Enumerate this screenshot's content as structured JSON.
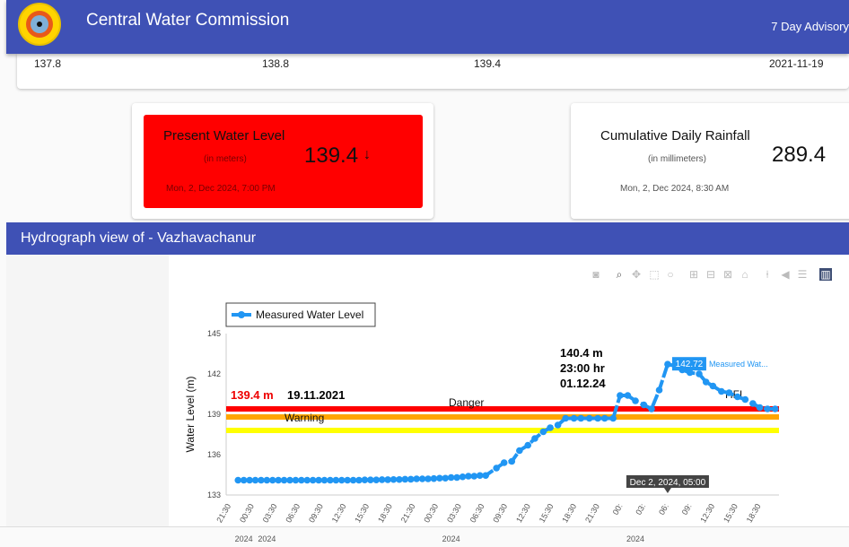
{
  "header": {
    "title": "Central Water Commission",
    "advisory_link": "7 Day Advisory"
  },
  "levels_strip": {
    "values": [
      "137.8",
      "138.8",
      "139.4",
      "2021-11-19"
    ]
  },
  "present_level": {
    "label": "Present Water Level",
    "unit": "(in meters)",
    "value": "139.4",
    "trend": "↓",
    "timestamp": "Mon, 2, Dec 2024, 7:00 PM"
  },
  "rainfall": {
    "label": "Cumulative Daily Rainfall",
    "unit": "(in millimeters)",
    "value": "289.4",
    "timestamp": "Mon, 2, Dec 2024, 8:30 AM"
  },
  "section": {
    "title": "Hydrograph view of - Vazhavachanur"
  },
  "modebar": [
    "camera-icon",
    "zoom-icon",
    "pan-icon",
    "box-select-icon",
    "lasso-icon",
    "zoom-in-icon",
    "zoom-out-icon",
    "autoscale-icon",
    "home-icon",
    "spike-icon",
    "hover-closest-icon",
    "hover-compare-icon",
    "plotly-logo-icon"
  ],
  "chart_data": {
    "type": "line",
    "ylabel": "Water Level (m)",
    "ylim": [
      133,
      145
    ],
    "yticks": [
      133,
      136,
      139,
      142,
      145
    ],
    "xlim": [
      -0.3,
      71.7
    ],
    "xticks": [
      {
        "h": 0,
        "label": "21:30"
      },
      {
        "h": 3,
        "label": "00:30"
      },
      {
        "h": 6,
        "label": "03:30"
      },
      {
        "h": 9,
        "label": "06:30"
      },
      {
        "h": 12,
        "label": "09:30"
      },
      {
        "h": 15,
        "label": "12:30"
      },
      {
        "h": 18,
        "label": "15:30"
      },
      {
        "h": 21,
        "label": "18:30"
      },
      {
        "h": 24,
        "label": "21:30"
      },
      {
        "h": 27,
        "label": "00:30"
      },
      {
        "h": 30,
        "label": "03:30"
      },
      {
        "h": 33,
        "label": "06:30"
      },
      {
        "h": 36,
        "label": "09:30"
      },
      {
        "h": 39,
        "label": "12:30"
      },
      {
        "h": 42,
        "label": "15:30"
      },
      {
        "h": 45,
        "label": "18:30"
      },
      {
        "h": 48,
        "label": "21:30"
      },
      {
        "h": 51,
        "label": "00:"
      },
      {
        "h": 54,
        "label": "03:"
      },
      {
        "h": 57,
        "label": "06:"
      },
      {
        "h": 60,
        "label": "09:"
      },
      {
        "h": 63,
        "label": "12:30"
      },
      {
        "h": 66,
        "label": "15:30"
      },
      {
        "h": 69,
        "label": "18:30"
      }
    ],
    "year_labels": [
      {
        "h": 2,
        "label": "2024"
      },
      {
        "h": 5,
        "label": "2024"
      },
      {
        "h": 29,
        "label": "2024"
      },
      {
        "h": 53,
        "label": "2024"
      }
    ],
    "legend": {
      "label": "Measured Water Level",
      "placement": "top-left"
    },
    "series": [
      {
        "name": "Measured Water Level",
        "color": "#2196f3",
        "x": [
          1.25,
          2,
          2.75,
          3.5,
          4.25,
          5,
          5.75,
          6.5,
          7.25,
          8,
          8.75,
          9.5,
          10.25,
          11,
          11.75,
          12.5,
          13.25,
          14,
          14.75,
          15.5,
          16.25,
          17,
          17.75,
          18.5,
          19.25,
          20,
          20.75,
          21.5,
          22.25,
          23,
          23.75,
          24.5,
          25.25,
          26,
          26.75,
          27.5,
          28.25,
          29,
          29.75,
          30.5,
          31.25,
          32,
          32.75,
          33.5,
          34.9,
          35.9,
          36.9,
          37.9,
          39,
          39.9,
          41,
          41.9,
          42.9,
          43.9,
          45,
          45.9,
          47,
          48.1,
          49,
          50.1,
          51,
          52,
          53,
          54.1,
          55.1,
          56.1,
          57.2,
          58.2,
          59.1,
          60.1,
          61.3,
          62.2,
          63.1,
          64.2,
          65.2,
          66.3,
          67.3,
          68.3,
          69.2,
          70.2,
          71.2
        ],
        "y": [
          134.1,
          134.1,
          134.1,
          134.1,
          134.1,
          134.1,
          134.1,
          134.1,
          134.1,
          134.1,
          134.1,
          134.1,
          134.1,
          134.1,
          134.1,
          134.1,
          134.1,
          134.1,
          134.1,
          134.1,
          134.1,
          134.1,
          134.12,
          134.12,
          134.12,
          134.14,
          134.14,
          134.15,
          134.15,
          134.17,
          134.17,
          134.2,
          134.2,
          134.2,
          134.22,
          134.25,
          134.25,
          134.3,
          134.3,
          134.35,
          134.4,
          134.4,
          134.45,
          134.45,
          135.0,
          135.4,
          135.5,
          136.3,
          136.7,
          137.2,
          137.7,
          138.0,
          138.2,
          138.7,
          138.7,
          138.7,
          138.7,
          138.7,
          138.7,
          138.7,
          140.4,
          140.4,
          140.0,
          139.7,
          139.4,
          140.8,
          142.72,
          142.6,
          142.3,
          142.1,
          142.0,
          141.4,
          141.1,
          140.7,
          140.6,
          140.3,
          140.1,
          139.8,
          139.5,
          139.4,
          139.4
        ]
      }
    ],
    "reference_lines": [
      {
        "name": "Danger",
        "value": 139.4,
        "color": "#ff0000"
      },
      {
        "name": "Warning",
        "value": 138.8,
        "color": "#ffa500"
      },
      {
        "name": "",
        "value": 137.8,
        "color": "#ffff00"
      }
    ],
    "annotations": {
      "danger_label": "Danger",
      "warning_label": "Warning",
      "hfl_label": "HFL",
      "hfl_value": "139.4 m",
      "hfl_date": "19.11.2021",
      "peak_note": [
        "140.4 m",
        "23:00 hr",
        "01.12.24"
      ],
      "hover_value": "142.72",
      "hover_series": "Measured Wat...",
      "hover_x": "Dec 2, 2024, 05:00"
    }
  }
}
